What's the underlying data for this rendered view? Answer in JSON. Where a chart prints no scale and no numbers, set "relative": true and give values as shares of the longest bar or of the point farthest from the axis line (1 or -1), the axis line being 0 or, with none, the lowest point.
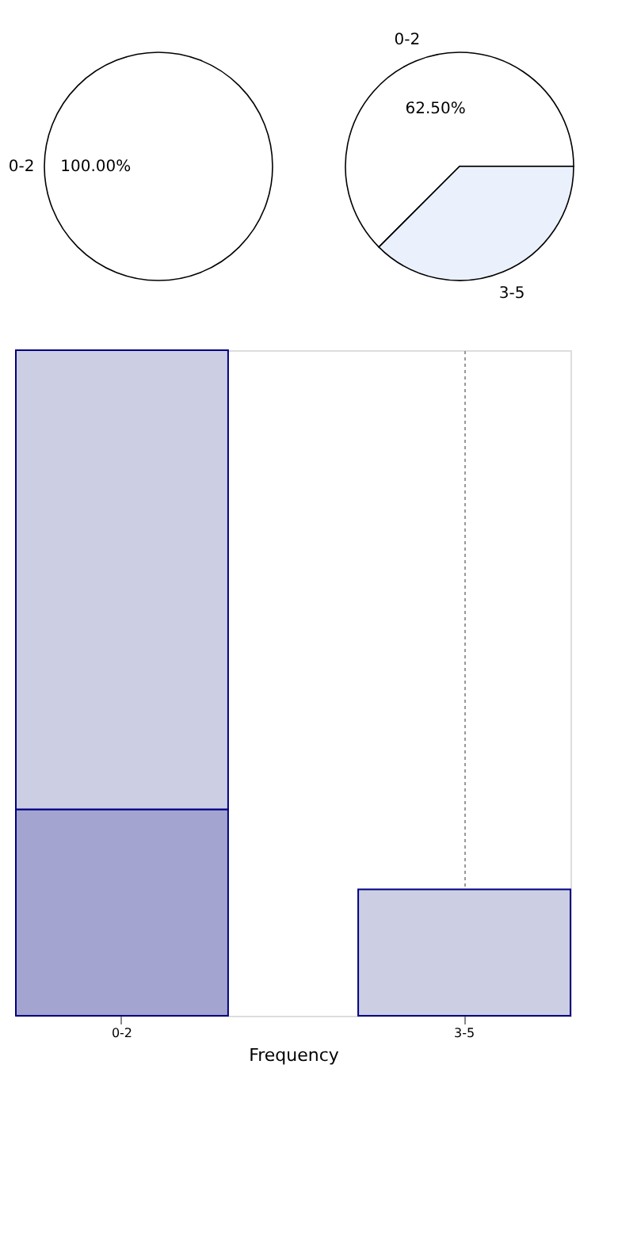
{
  "chart_data": [
    {
      "type": "pie",
      "categories": [
        "0-2"
      ],
      "values": [
        100
      ],
      "colors": [
        "#ffffff"
      ],
      "value_labels": [
        "100.00%"
      ]
    },
    {
      "type": "pie",
      "categories": [
        "0-2",
        "3-5"
      ],
      "values": [
        62.5,
        37.5
      ],
      "colors": [
        "#ffffff",
        "#ebf1fc"
      ],
      "value_labels": [
        "62.50%",
        null
      ]
    },
    {
      "type": "bar",
      "categories": [
        "0-2",
        "3-5"
      ],
      "xlabel": "Frequency",
      "relative": true,
      "grid": "x",
      "stacked": true,
      "series": [
        {
          "color": "#a3a5d0",
          "values": [
            0.31,
            null
          ]
        },
        {
          "color": "#cccee4",
          "values": [
            0.69,
            0.19
          ]
        }
      ]
    }
  ]
}
